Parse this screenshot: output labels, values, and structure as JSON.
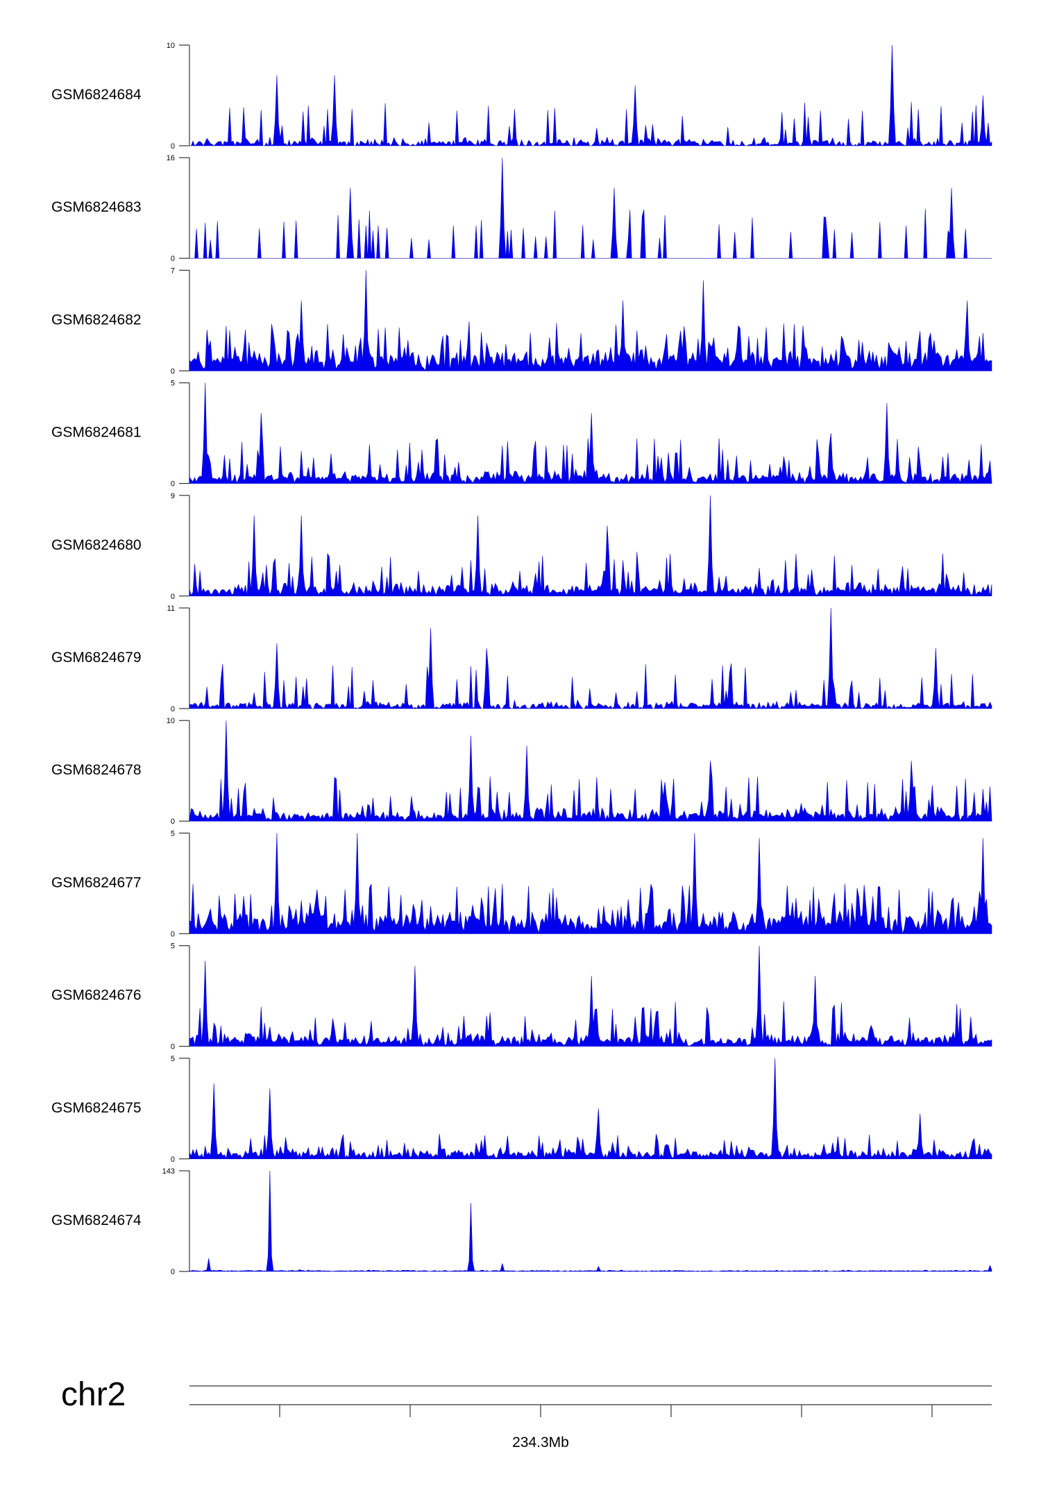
{
  "chart_data": {
    "type": "area",
    "chromosome": "chr2",
    "position_label": "234.3Mb",
    "colors": {
      "signal": "#0000ee",
      "axis": "#333333",
      "background": "#ffffff"
    },
    "series": [
      {
        "name": "GSM6824684",
        "ymin": 0,
        "ymax": 10,
        "profile": "sparse",
        "peaks": [
          [
            0.875,
            1.0
          ],
          [
            0.11,
            0.7
          ],
          [
            0.18,
            0.7
          ],
          [
            0.555,
            0.6
          ],
          [
            0.99,
            0.5
          ]
        ]
      },
      {
        "name": "GSM6824683",
        "ymin": 0,
        "ymax": 16,
        "profile": "spiky",
        "peaks": [
          [
            0.39,
            1.0
          ],
          [
            0.2,
            0.7
          ],
          [
            0.53,
            0.7
          ],
          [
            0.95,
            0.7
          ]
        ]
      },
      {
        "name": "GSM6824682",
        "ymin": 0,
        "ymax": 7,
        "profile": "dense",
        "peaks": [
          [
            0.22,
            1.0
          ],
          [
            0.64,
            0.9
          ],
          [
            0.14,
            0.7
          ],
          [
            0.54,
            0.7
          ],
          [
            0.97,
            0.7
          ]
        ]
      },
      {
        "name": "GSM6824681",
        "ymin": 0,
        "ymax": 5,
        "profile": "medium",
        "peaks": [
          [
            0.02,
            1.0
          ],
          [
            0.09,
            0.7
          ],
          [
            0.87,
            0.8
          ],
          [
            0.5,
            0.7
          ],
          [
            0.8,
            0.5
          ]
        ]
      },
      {
        "name": "GSM6824680",
        "ymin": 0,
        "ymax": 9,
        "profile": "medium",
        "peaks": [
          [
            0.65,
            1.0
          ],
          [
            0.08,
            0.8
          ],
          [
            0.14,
            0.8
          ],
          [
            0.36,
            0.8
          ],
          [
            0.52,
            0.7
          ]
        ]
      },
      {
        "name": "GSM6824679",
        "ymin": 0,
        "ymax": 11,
        "profile": "sparse",
        "peaks": [
          [
            0.8,
            1.0
          ],
          [
            0.3,
            0.8
          ],
          [
            0.11,
            0.65
          ],
          [
            0.37,
            0.6
          ],
          [
            0.93,
            0.6
          ]
        ]
      },
      {
        "name": "GSM6824678",
        "ymin": 0,
        "ymax": 10,
        "profile": "medium",
        "peaks": [
          [
            0.045,
            1.0
          ],
          [
            0.35,
            0.85
          ],
          [
            0.42,
            0.75
          ],
          [
            0.65,
            0.6
          ],
          [
            0.9,
            0.6
          ]
        ]
      },
      {
        "name": "GSM6824677",
        "ymin": 0,
        "ymax": 5,
        "profile": "dense",
        "peaks": [
          [
            0.11,
            1.0
          ],
          [
            0.21,
            1.0
          ],
          [
            0.63,
            1.0
          ],
          [
            0.71,
            0.95
          ],
          [
            0.99,
            0.95
          ]
        ]
      },
      {
        "name": "GSM6824676",
        "ymin": 0,
        "ymax": 5,
        "profile": "medium",
        "peaks": [
          [
            0.71,
            1.0
          ],
          [
            0.02,
            0.85
          ],
          [
            0.28,
            0.8
          ],
          [
            0.5,
            0.7
          ],
          [
            0.78,
            0.7
          ]
        ]
      },
      {
        "name": "GSM6824675",
        "ymin": 0,
        "ymax": 5,
        "profile": "low",
        "peaks": [
          [
            0.73,
            1.0
          ],
          [
            0.03,
            0.75
          ],
          [
            0.1,
            0.7
          ],
          [
            0.51,
            0.5
          ],
          [
            0.91,
            0.45
          ]
        ]
      },
      {
        "name": "GSM6824674",
        "ymin": 0,
        "ymax": 143,
        "profile": "flat",
        "peaks": [
          [
            0.1,
            1.0
          ],
          [
            0.35,
            0.68
          ],
          [
            0.025,
            0.13
          ],
          [
            0.39,
            0.08
          ],
          [
            0.51,
            0.05
          ],
          [
            0.998,
            0.06
          ]
        ]
      }
    ]
  }
}
